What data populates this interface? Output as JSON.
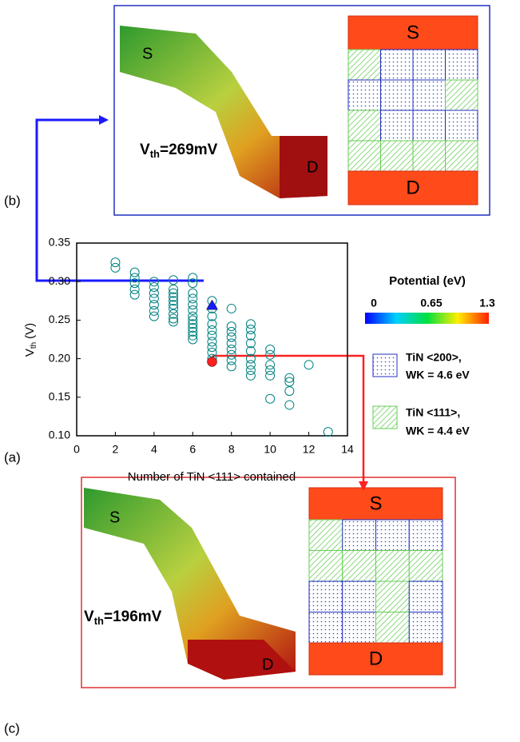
{
  "chart_data": {
    "type": "scatter",
    "xlabel": "Number of TiN <111> contained",
    "ylabel": [
      "V",
      "th",
      "(V)"
    ],
    "xlim": [
      0,
      14
    ],
    "xticks": [
      0,
      2,
      4,
      6,
      8,
      10,
      12,
      14
    ],
    "ylim": [
      0.1,
      0.35
    ],
    "yticks": [
      {
        "value": 0.1,
        "label": "0.10"
      },
      0.15,
      {
        "value": 0.2,
        "label": "0.20"
      },
      0.25,
      {
        "value": 0.3,
        "label": "0.30"
      },
      0.35
    ],
    "series": [
      {
        "color": "#008080",
        "marker": "open-circle",
        "x": [
          2,
          2,
          3,
          3,
          3,
          3,
          3,
          4,
          4,
          4,
          4,
          4,
          4,
          4,
          5,
          5,
          5,
          5,
          5,
          5,
          5,
          5,
          5,
          5,
          6,
          6,
          6,
          6,
          6,
          6,
          6,
          6,
          6,
          6,
          6,
          6,
          6,
          7,
          7,
          7,
          7,
          7,
          7,
          7,
          7,
          7,
          7,
          8,
          8,
          8,
          8,
          8,
          8,
          8,
          8,
          8,
          9,
          9,
          9,
          9,
          9,
          9,
          9,
          9,
          9,
          10,
          10,
          10,
          10,
          10,
          10,
          11,
          11,
          11,
          11,
          12,
          13
        ],
        "values": [
          0.325,
          0.318,
          0.312,
          0.305,
          0.298,
          0.29,
          0.283,
          0.3,
          0.293,
          0.285,
          0.278,
          0.27,
          0.262,
          0.255,
          0.302,
          0.29,
          0.285,
          0.28,
          0.275,
          0.27,
          0.265,
          0.258,
          0.252,
          0.248,
          0.305,
          0.298,
          0.285,
          0.278,
          0.27,
          0.263,
          0.255,
          0.25,
          0.245,
          0.24,
          0.235,
          0.23,
          0.225,
          0.275,
          0.265,
          0.255,
          0.245,
          0.237,
          0.23,
          0.222,
          0.215,
          0.208,
          0.2,
          0.265,
          0.242,
          0.235,
          0.228,
          0.22,
          0.212,
          0.205,
          0.198,
          0.19,
          0.245,
          0.238,
          0.23,
          0.22,
          0.21,
          0.2,
          0.192,
          0.185,
          0.178,
          0.212,
          0.205,
          0.192,
          0.185,
          0.178,
          0.148,
          0.175,
          0.17,
          0.158,
          0.14,
          0.192,
          0.105
        ]
      },
      {
        "color": "#1a1aff",
        "marker": "triangle",
        "x": [
          7
        ],
        "values": [
          0.269
        ]
      },
      {
        "color": "#ff2020",
        "marker": "circle",
        "x": [
          7
        ],
        "values": [
          0.196
        ]
      }
    ]
  },
  "panel_labels": {
    "a": "(a)",
    "b": "(b)",
    "c": "(c)"
  },
  "panel_b": {
    "vth": [
      "V",
      "th",
      "=269mV"
    ],
    "source": "S",
    "drain": "D",
    "grid_source": "S",
    "grid_drain": "D"
  },
  "panel_c": {
    "vth": [
      "V",
      "th",
      "=196mV"
    ],
    "source": "S",
    "drain": "D",
    "grid_source": "S",
    "grid_drain": "D"
  },
  "colorbar": {
    "title": "Potential (eV)",
    "ticks": [
      "0",
      "0.65",
      "1.3"
    ]
  },
  "legend": {
    "items": [
      {
        "line1": "TiN <200>,",
        "line2": "WK = 4.6 eV"
      },
      {
        "line1": "TiN <111>,",
        "line2": "WK = 4.4 eV"
      }
    ]
  }
}
